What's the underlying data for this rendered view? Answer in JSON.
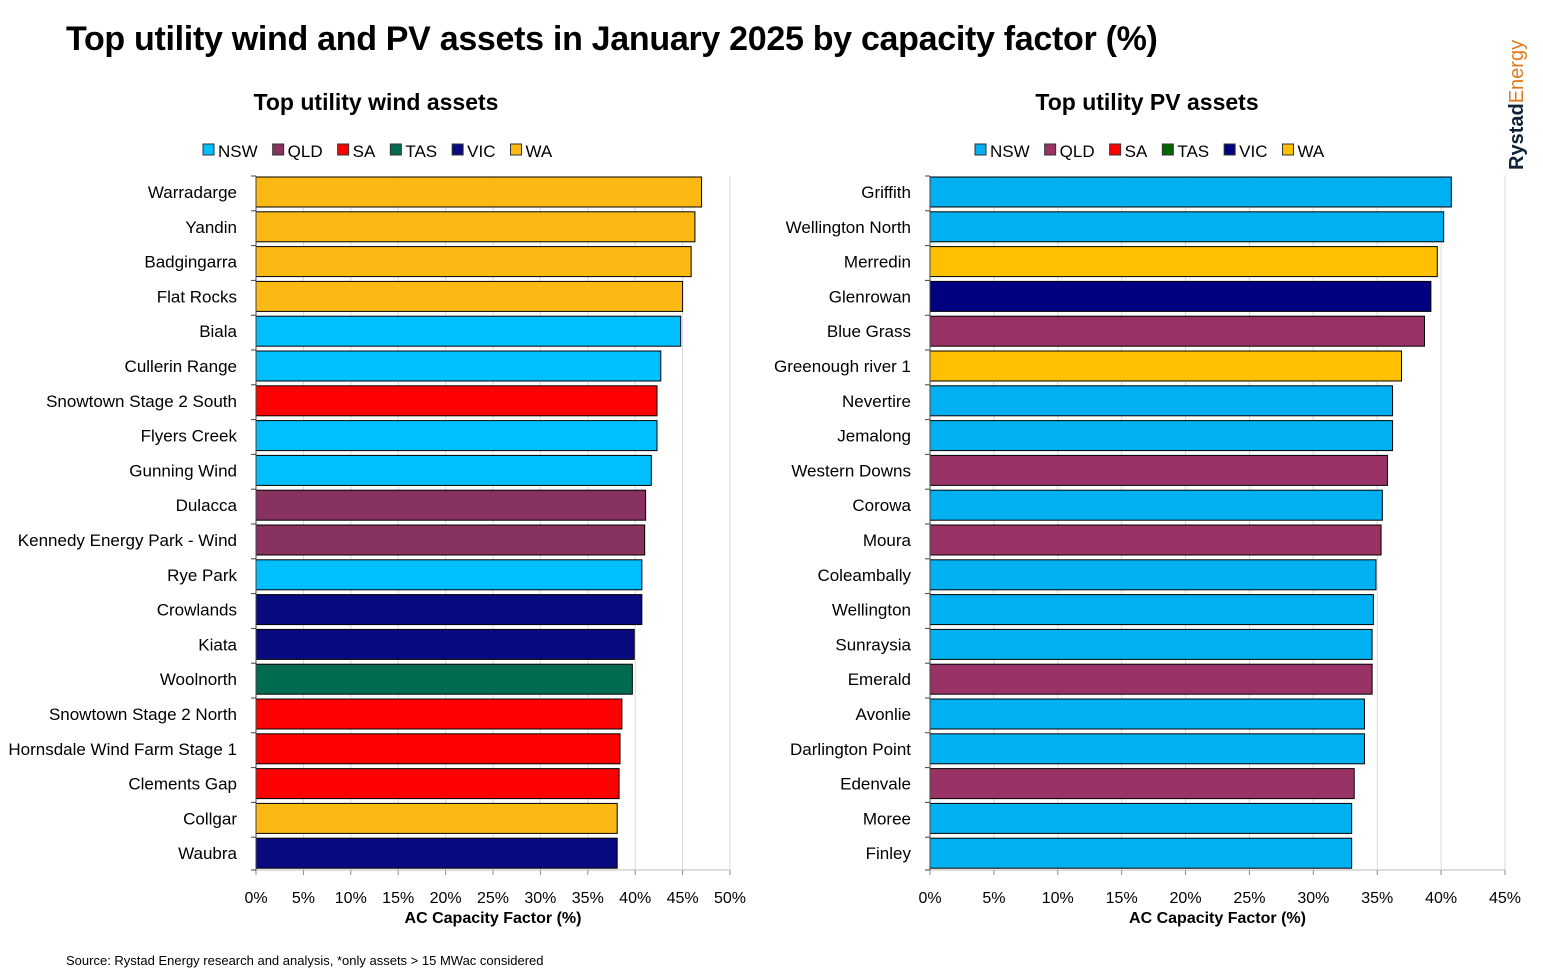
{
  "title": "Top utility wind and PV assets in January 2025 by capacity factor (%)",
  "source": "Source: Rystad Energy research and analysis, *only assets > 15 MWac considered",
  "logo": {
    "part1": "Rystad",
    "part2": "Energy"
  },
  "chart_data": [
    {
      "type": "bar",
      "orientation": "horizontal",
      "title": "Top utility wind assets",
      "xlabel": "AC Capacity Factor (%)",
      "xlim": [
        0,
        50
      ],
      "xticks": [
        "0%",
        "5%",
        "10%",
        "15%",
        "20%",
        "25%",
        "30%",
        "35%",
        "40%",
        "45%",
        "50%"
      ],
      "grid": true,
      "legend_position": "top",
      "legend": [
        "NSW",
        "QLD",
        "SA",
        "TAS",
        "VIC",
        "WA"
      ],
      "colors": {
        "NSW": "#00BFFF",
        "QLD": "#87325F",
        "SA": "#FF0000",
        "TAS": "#006B50",
        "VIC": "#0A0A80",
        "WA": "#FDB913"
      },
      "categories": [
        "Warradarge",
        "Yandin",
        "Badgingarra",
        "Flat Rocks",
        "Biala",
        "Cullerin Range",
        "Snowtown Stage 2 South",
        "Flyers Creek",
        "Gunning Wind",
        "Dulacca",
        "Kennedy Energy Park - Wind",
        "Rye Park",
        "Crowlands",
        "Kiata",
        "Woolnorth",
        "Snowtown Stage 2 North",
        "Hornsdale Wind Farm Stage 1",
        "Clements Gap",
        "Collgar",
        "Waubra"
      ],
      "states": [
        "WA",
        "WA",
        "WA",
        "WA",
        "NSW",
        "NSW",
        "SA",
        "NSW",
        "NSW",
        "QLD",
        "QLD",
        "NSW",
        "VIC",
        "VIC",
        "TAS",
        "SA",
        "SA",
        "SA",
        "WA",
        "VIC"
      ],
      "values": [
        47.0,
        46.3,
        45.9,
        45.0,
        44.8,
        42.7,
        42.3,
        42.3,
        41.7,
        41.1,
        41.0,
        40.7,
        40.7,
        39.9,
        39.7,
        38.6,
        38.4,
        38.3,
        38.1,
        38.1
      ]
    },
    {
      "type": "bar",
      "orientation": "horizontal",
      "title": "Top utility PV assets",
      "xlabel": "AC Capacity Factor (%)",
      "xlim": [
        0,
        45
      ],
      "xticks": [
        "0%",
        "5%",
        "10%",
        "15%",
        "20%",
        "25%",
        "30%",
        "35%",
        "40%",
        "45%"
      ],
      "grid": true,
      "legend_position": "top",
      "legend": [
        "NSW",
        "QLD",
        "SA",
        "TAS",
        "VIC",
        "WA"
      ],
      "colors": {
        "NSW": "#00B0F0",
        "QLD": "#993366",
        "SA": "#FF0000",
        "TAS": "#006600",
        "VIC": "#000080",
        "WA": "#FFC000"
      },
      "categories": [
        "Griffith",
        "Wellington North",
        "Merredin",
        "Glenrowan",
        "Blue Grass",
        "Greenough river 1",
        "Nevertire",
        "Jemalong",
        "Western Downs",
        "Corowa",
        "Moura",
        "Coleambally",
        "Wellington",
        "Sunraysia",
        "Emerald",
        "Avonlie",
        "Darlington Point",
        "Edenvale",
        "Moree",
        "Finley"
      ],
      "states": [
        "NSW",
        "NSW",
        "WA",
        "VIC",
        "QLD",
        "WA",
        "NSW",
        "NSW",
        "QLD",
        "NSW",
        "QLD",
        "NSW",
        "NSW",
        "NSW",
        "QLD",
        "NSW",
        "NSW",
        "QLD",
        "NSW",
        "NSW"
      ],
      "values": [
        40.8,
        40.2,
        39.7,
        39.2,
        38.7,
        36.9,
        36.2,
        36.2,
        35.8,
        35.4,
        35.3,
        34.9,
        34.7,
        34.6,
        34.6,
        34.0,
        34.0,
        33.2,
        33.0,
        33.0
      ]
    }
  ]
}
